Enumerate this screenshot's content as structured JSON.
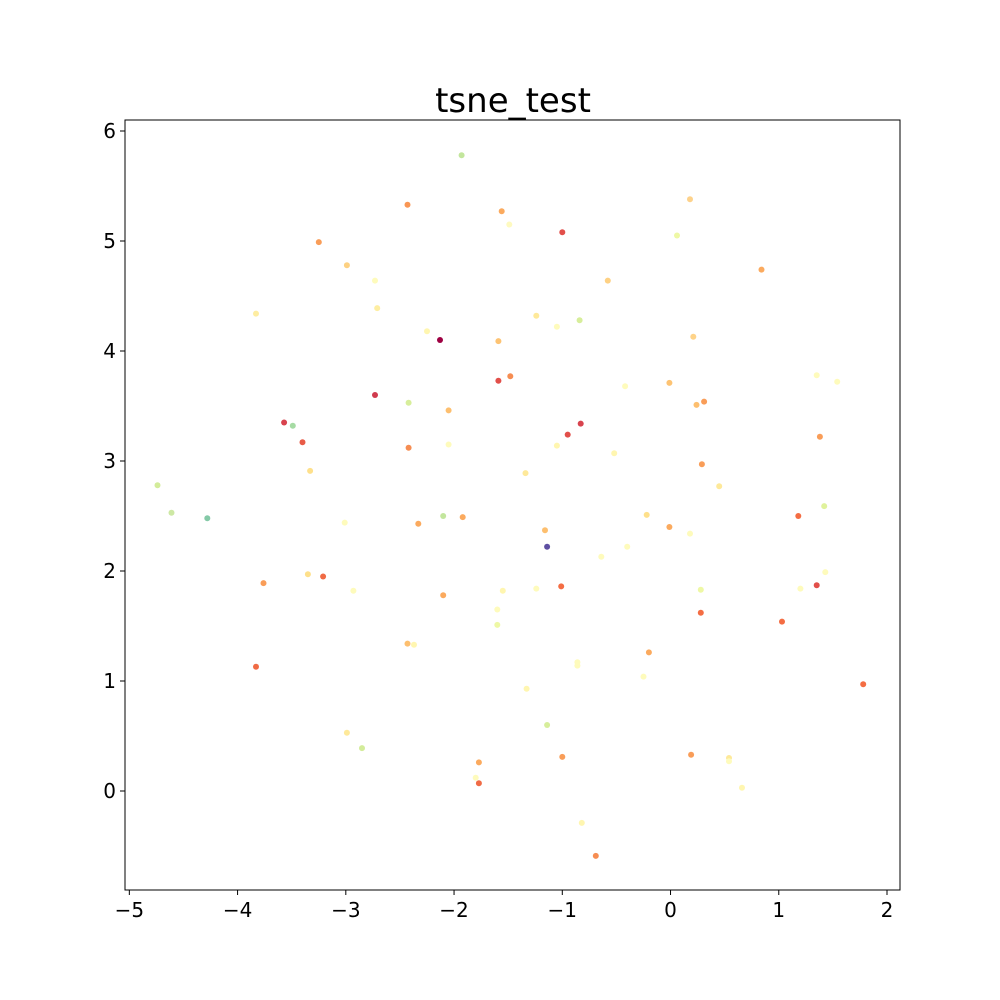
{
  "chart_data": {
    "type": "scatter",
    "title": "tsne_test",
    "xlabel": "",
    "ylabel": "",
    "xlim": [
      -5.04,
      2.12
    ],
    "ylim": [
      -0.9,
      6.1
    ],
    "grid": false,
    "legend": false,
    "colormap": "Spectral",
    "x_ticks": [
      {
        "value": -5,
        "label": "−5"
      },
      {
        "value": -4,
        "label": "−4"
      },
      {
        "value": -3,
        "label": "−3"
      },
      {
        "value": -2,
        "label": "−2"
      },
      {
        "value": -1,
        "label": "−1"
      },
      {
        "value": 0,
        "label": "0"
      },
      {
        "value": 1,
        "label": "1"
      },
      {
        "value": 2,
        "label": "2"
      }
    ],
    "y_ticks": [
      {
        "value": 0,
        "label": "0"
      },
      {
        "value": 1,
        "label": "1"
      },
      {
        "value": 2,
        "label": "2"
      },
      {
        "value": 3,
        "label": "3"
      },
      {
        "value": 4,
        "label": "4"
      },
      {
        "value": 5,
        "label": "5"
      },
      {
        "value": 6,
        "label": "6"
      }
    ],
    "points": [
      {
        "x": -1.93,
        "y": 5.78,
        "color": "#c3e69d"
      },
      {
        "x": 0.18,
        "y": 5.38,
        "color": "#fdd28b"
      },
      {
        "x": -2.43,
        "y": 5.33,
        "color": "#f99654"
      },
      {
        "x": -1.56,
        "y": 5.27,
        "color": "#fbaa5e"
      },
      {
        "x": -1.49,
        "y": 5.15,
        "color": "#fefac0"
      },
      {
        "x": -1.0,
        "y": 5.08,
        "color": "#e24f4a"
      },
      {
        "x": 0.06,
        "y": 5.05,
        "color": "#eef8a5"
      },
      {
        "x": -3.25,
        "y": 4.99,
        "color": "#f99d58"
      },
      {
        "x": -2.99,
        "y": 4.78,
        "color": "#fdd182"
      },
      {
        "x": 0.84,
        "y": 4.74,
        "color": "#fbaa5e"
      },
      {
        "x": -2.73,
        "y": 4.64,
        "color": "#fefbbc"
      },
      {
        "x": -0.58,
        "y": 4.64,
        "color": "#fed184"
      },
      {
        "x": -2.71,
        "y": 4.39,
        "color": "#feeea2"
      },
      {
        "x": -3.83,
        "y": 4.34,
        "color": "#feeda1"
      },
      {
        "x": -1.24,
        "y": 4.32,
        "color": "#fee99a"
      },
      {
        "x": -0.84,
        "y": 4.28,
        "color": "#d7ee9b"
      },
      {
        "x": -1.05,
        "y": 4.22,
        "color": "#fefbbc"
      },
      {
        "x": -2.25,
        "y": 4.18,
        "color": "#fff6b0"
      },
      {
        "x": 0.21,
        "y": 4.13,
        "color": "#fed389"
      },
      {
        "x": -2.13,
        "y": 4.1,
        "color": "#9e0142"
      },
      {
        "x": -1.59,
        "y": 4.09,
        "color": "#fdc373"
      },
      {
        "x": 1.35,
        "y": 3.78,
        "color": "#fefbbc"
      },
      {
        "x": -1.48,
        "y": 3.77,
        "color": "#f68d52"
      },
      {
        "x": -1.59,
        "y": 3.73,
        "color": "#e24f4a"
      },
      {
        "x": 1.54,
        "y": 3.72,
        "color": "#fefbbc"
      },
      {
        "x": -0.01,
        "y": 3.71,
        "color": "#fdc373"
      },
      {
        "x": -0.42,
        "y": 3.68,
        "color": "#fefbbc"
      },
      {
        "x": -2.73,
        "y": 3.6,
        "color": "#d03b4e"
      },
      {
        "x": 0.31,
        "y": 3.54,
        "color": "#f99d58"
      },
      {
        "x": -2.42,
        "y": 3.53,
        "color": "#d7ee9b"
      },
      {
        "x": 0.24,
        "y": 3.51,
        "color": "#fdbf6f"
      },
      {
        "x": -2.05,
        "y": 3.46,
        "color": "#fdbf6f"
      },
      {
        "x": -3.57,
        "y": 3.35,
        "color": "#d8434e"
      },
      {
        "x": -0.83,
        "y": 3.34,
        "color": "#d8434e"
      },
      {
        "x": -3.49,
        "y": 3.32,
        "color": "#a6dba4"
      },
      {
        "x": 1.38,
        "y": 3.22,
        "color": "#f99d58"
      },
      {
        "x": -0.95,
        "y": 3.24,
        "color": "#e24f4a"
      },
      {
        "x": -3.4,
        "y": 3.17,
        "color": "#e85b47"
      },
      {
        "x": -2.05,
        "y": 3.15,
        "color": "#fefbbc"
      },
      {
        "x": -1.05,
        "y": 3.14,
        "color": "#fff6b0"
      },
      {
        "x": -2.42,
        "y": 3.12,
        "color": "#f68d52"
      },
      {
        "x": -0.52,
        "y": 3.07,
        "color": "#fff6b0"
      },
      {
        "x": 0.29,
        "y": 2.97,
        "color": "#f99d58"
      },
      {
        "x": -3.33,
        "y": 2.91,
        "color": "#fee08b"
      },
      {
        "x": -1.34,
        "y": 2.89,
        "color": "#fee99a"
      },
      {
        "x": -4.74,
        "y": 2.78,
        "color": "#d3ec9a"
      },
      {
        "x": 0.45,
        "y": 2.77,
        "color": "#fee99a"
      },
      {
        "x": 1.42,
        "y": 2.59,
        "color": "#e0f29c"
      },
      {
        "x": -4.61,
        "y": 2.53,
        "color": "#cde8a4"
      },
      {
        "x": -0.22,
        "y": 2.51,
        "color": "#fee08b"
      },
      {
        "x": 1.18,
        "y": 2.5,
        "color": "#f46d43"
      },
      {
        "x": -2.1,
        "y": 2.5,
        "color": "#c3e69d"
      },
      {
        "x": -1.92,
        "y": 2.49,
        "color": "#fbaa5e"
      },
      {
        "x": -4.28,
        "y": 2.48,
        "color": "#84c9a7"
      },
      {
        "x": -3.01,
        "y": 2.44,
        "color": "#fefbbc"
      },
      {
        "x": -2.33,
        "y": 2.43,
        "color": "#fbaa5e"
      },
      {
        "x": -0.01,
        "y": 2.4,
        "color": "#fbaa5e"
      },
      {
        "x": -1.16,
        "y": 2.37,
        "color": "#fdbf6f"
      },
      {
        "x": 0.18,
        "y": 2.34,
        "color": "#fefbbc"
      },
      {
        "x": -0.4,
        "y": 2.22,
        "color": "#fefbbc"
      },
      {
        "x": -1.14,
        "y": 2.22,
        "color": "#5e4fa2"
      },
      {
        "x": -0.64,
        "y": 2.13,
        "color": "#fefbbc"
      },
      {
        "x": 1.43,
        "y": 1.99,
        "color": "#fefbbc"
      },
      {
        "x": -3.35,
        "y": 1.97,
        "color": "#fee08b"
      },
      {
        "x": -3.21,
        "y": 1.95,
        "color": "#f06b45"
      },
      {
        "x": -3.76,
        "y": 1.89,
        "color": "#f99d58"
      },
      {
        "x": -1.01,
        "y": 1.86,
        "color": "#f46d43"
      },
      {
        "x": 1.35,
        "y": 1.87,
        "color": "#e24f4a"
      },
      {
        "x": -1.24,
        "y": 1.84,
        "color": "#fefbbc"
      },
      {
        "x": 1.2,
        "y": 1.84,
        "color": "#fefbbc"
      },
      {
        "x": 0.28,
        "y": 1.83,
        "color": "#eef8a5"
      },
      {
        "x": -1.55,
        "y": 1.82,
        "color": "#fff6b0"
      },
      {
        "x": -2.93,
        "y": 1.82,
        "color": "#fefbbc"
      },
      {
        "x": -2.1,
        "y": 1.78,
        "color": "#fbaa5e"
      },
      {
        "x": -1.6,
        "y": 1.65,
        "color": "#fefbbc"
      },
      {
        "x": 0.28,
        "y": 1.62,
        "color": "#f46d43"
      },
      {
        "x": 1.03,
        "y": 1.54,
        "color": "#f46d43"
      },
      {
        "x": -1.6,
        "y": 1.51,
        "color": "#eef8a5"
      },
      {
        "x": -2.43,
        "y": 1.34,
        "color": "#fdbf6f"
      },
      {
        "x": -2.37,
        "y": 1.33,
        "color": "#fff6b0"
      },
      {
        "x": -0.2,
        "y": 1.26,
        "color": "#fbaa5e"
      },
      {
        "x": -0.86,
        "y": 1.17,
        "color": "#fefbbc"
      },
      {
        "x": -0.86,
        "y": 1.14,
        "color": "#fefbbc"
      },
      {
        "x": -3.83,
        "y": 1.13,
        "color": "#f06b45"
      },
      {
        "x": -0.25,
        "y": 1.04,
        "color": "#fefbbc"
      },
      {
        "x": 1.78,
        "y": 0.97,
        "color": "#f46d43"
      },
      {
        "x": -1.33,
        "y": 0.93,
        "color": "#fff6b0"
      },
      {
        "x": -1.14,
        "y": 0.6,
        "color": "#d7ee9b"
      },
      {
        "x": -2.99,
        "y": 0.53,
        "color": "#fee99a"
      },
      {
        "x": -2.85,
        "y": 0.39,
        "color": "#d3ec9a"
      },
      {
        "x": 0.19,
        "y": 0.33,
        "color": "#f99d58"
      },
      {
        "x": -1.0,
        "y": 0.31,
        "color": "#f99d58"
      },
      {
        "x": 0.54,
        "y": 0.3,
        "color": "#fee99a"
      },
      {
        "x": 0.54,
        "y": 0.27,
        "color": "#fefbbc"
      },
      {
        "x": -1.77,
        "y": 0.26,
        "color": "#fbaa5e"
      },
      {
        "x": -1.8,
        "y": 0.12,
        "color": "#fefbbc"
      },
      {
        "x": -1.77,
        "y": 0.07,
        "color": "#f06b45"
      },
      {
        "x": 0.66,
        "y": 0.03,
        "color": "#fff6b0"
      },
      {
        "x": -0.82,
        "y": -0.29,
        "color": "#fff6b0"
      },
      {
        "x": -0.69,
        "y": -0.59,
        "color": "#f68d52"
      }
    ]
  }
}
